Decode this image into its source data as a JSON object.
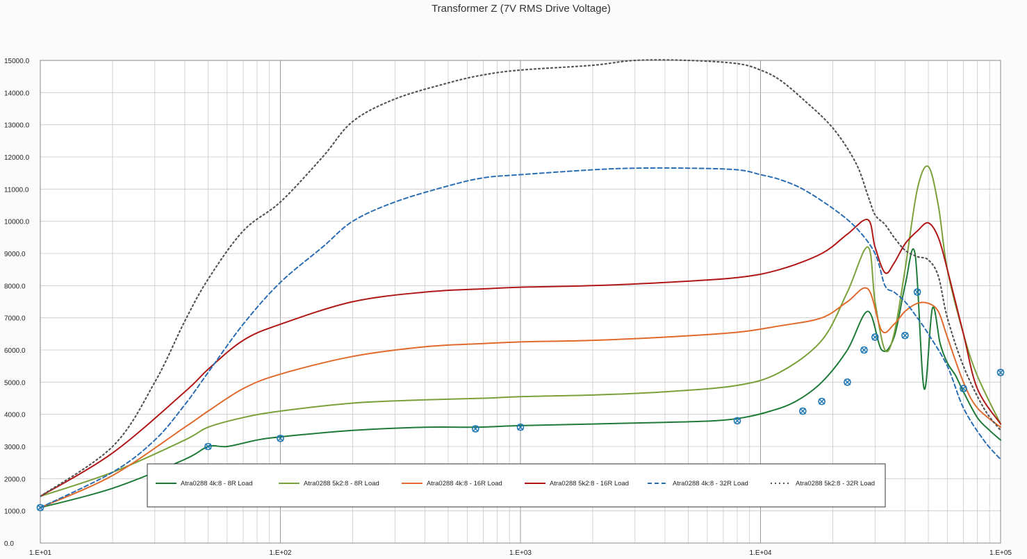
{
  "chart_data": {
    "type": "line",
    "title": "Transformer Z (7V RMS Drive Voltage)",
    "xlabel": "",
    "ylabel": "",
    "x_scale": "log",
    "xlim": [
      10,
      100000
    ],
    "ylim": [
      0,
      15000
    ],
    "grid": true,
    "legend_position": "bottom-center",
    "x_ticks": [
      "1.E+01",
      "1.E+02",
      "1.E+03",
      "1.E+04",
      "1.E+05"
    ],
    "y_ticks": [
      "0.0",
      "1000.0",
      "2000.0",
      "3000.0",
      "4000.0",
      "5000.0",
      "6000.0",
      "7000.0",
      "8000.0",
      "9000.0",
      "10000.0",
      "11000.0",
      "12000.0",
      "13000.0",
      "14000.0",
      "15000.0"
    ],
    "series": [
      {
        "name": "Atra0288 4k:8 - 8R Load",
        "color": "#1e7a37",
        "dash": "solid",
        "markers": true,
        "x": [
          10,
          20,
          40,
          50,
          60,
          80,
          100,
          200,
          400,
          650,
          1000,
          2000,
          4000,
          6500,
          8500,
          11000,
          14000,
          18000,
          23000,
          28000,
          32000,
          36000,
          40000,
          44000,
          48000,
          52000,
          56000,
          60000,
          65000,
          70000,
          80000,
          90000,
          100000
        ],
        "y": [
          1100,
          1700,
          2600,
          3000,
          3000,
          3200,
          3300,
          3500,
          3600,
          3600,
          3650,
          3700,
          3750,
          3800,
          3900,
          4100,
          4400,
          5000,
          6000,
          7200,
          6000,
          6400,
          8000,
          9000,
          4800,
          7300,
          6200,
          5600,
          5200,
          4700,
          3900,
          3500,
          3200
        ],
        "marker_x": [
          10,
          50,
          100,
          650,
          1000,
          8000,
          15000,
          18000,
          23000,
          27000,
          30000,
          40000,
          45000,
          70000,
          100000
        ],
        "marker_y": [
          1100,
          3000,
          3250,
          3550,
          3600,
          3800,
          4100,
          4400,
          5000,
          6000,
          6400,
          6450,
          7800,
          4800,
          5300
        ]
      },
      {
        "name": "Atra0288 5k2:8 - 8R Load",
        "color": "#7aa03a",
        "dash": "solid",
        "markers": false,
        "x": [
          10,
          20,
          40,
          50,
          70,
          100,
          200,
          400,
          700,
          1000,
          2000,
          4000,
          8000,
          12000,
          18000,
          23000,
          28000,
          30000,
          33000,
          36000,
          40000,
          45000,
          50000,
          55000,
          60000,
          70000,
          80000,
          100000
        ],
        "y": [
          1450,
          2200,
          3200,
          3600,
          3900,
          4100,
          4350,
          4450,
          4500,
          4550,
          4600,
          4700,
          4900,
          5300,
          6300,
          7800,
          9200,
          7500,
          6000,
          6500,
          8500,
          11000,
          11700,
          10500,
          8500,
          6500,
          5200,
          3700
        ]
      },
      {
        "name": "Atra0288 4k:8 - 16R Load",
        "color": "#e06a2b",
        "dash": "solid",
        "markers": false,
        "x": [
          10,
          20,
          40,
          50,
          70,
          100,
          200,
          400,
          700,
          1000,
          2000,
          4000,
          8000,
          12000,
          18000,
          23000,
          28000,
          32000,
          36000,
          40000,
          45000,
          50000,
          55000,
          60000,
          70000,
          80000,
          100000
        ],
        "y": [
          1100,
          2100,
          3600,
          4100,
          4800,
          5250,
          5800,
          6100,
          6200,
          6250,
          6300,
          6400,
          6550,
          6750,
          7000,
          7500,
          7900,
          6600,
          6800,
          7200,
          7450,
          7450,
          7200,
          6400,
          5000,
          4200,
          3600
        ]
      },
      {
        "name": "Atra0288 5k2:8 - 16R Load",
        "color": "#b01818",
        "dash": "solid",
        "markers": false,
        "x": [
          10,
          20,
          40,
          50,
          70,
          100,
          200,
          400,
          700,
          1000,
          2000,
          4000,
          8000,
          12000,
          18000,
          23000,
          28000,
          30000,
          33000,
          36000,
          40000,
          45000,
          50000,
          55000,
          60000,
          70000,
          80000,
          100000
        ],
        "y": [
          1450,
          2800,
          4700,
          5400,
          6300,
          6800,
          7500,
          7800,
          7900,
          7950,
          8000,
          8100,
          8250,
          8500,
          9000,
          9600,
          10050,
          9200,
          8400,
          8700,
          9300,
          9700,
          9950,
          9500,
          8500,
          6500,
          4800,
          3700
        ]
      },
      {
        "name": "Atra0288 4k:8 - 32R Load",
        "color": "#2a6db3",
        "dash": "dashed",
        "markers": false,
        "x": [
          10,
          20,
          30,
          40,
          50,
          70,
          100,
          150,
          200,
          300,
          500,
          700,
          1000,
          2000,
          3000,
          5000,
          8000,
          10000,
          12000,
          15000,
          20000,
          25000,
          30000,
          33000,
          36000,
          40000,
          45000,
          50000,
          60000,
          70000,
          85000,
          100000
        ],
        "y": [
          1100,
          2200,
          3200,
          4300,
          5300,
          6800,
          8100,
          9200,
          10000,
          10600,
          11100,
          11350,
          11450,
          11600,
          11650,
          11650,
          11600,
          11450,
          11300,
          11000,
          10400,
          9800,
          9000,
          8000,
          7800,
          7500,
          7000,
          6500,
          5500,
          4200,
          3200,
          2600
        ]
      },
      {
        "name": "Atra0288 5k2:8 - 32R Load",
        "color": "#555555",
        "dash": "dotted",
        "markers": false,
        "x": [
          10,
          20,
          30,
          40,
          50,
          70,
          100,
          150,
          200,
          300,
          500,
          700,
          1000,
          2000,
          3000,
          5000,
          8000,
          10000,
          12000,
          15000,
          20000,
          25000,
          28000,
          30000,
          33000,
          36000,
          40000,
          45000,
          50000,
          55000,
          60000,
          70000,
          85000,
          100000
        ],
        "y": [
          1450,
          3000,
          5000,
          6900,
          8200,
          9700,
          10600,
          12000,
          13100,
          13800,
          14300,
          14550,
          14700,
          14850,
          15000,
          15000,
          14900,
          14700,
          14400,
          13800,
          12900,
          11800,
          10800,
          10200,
          9900,
          9500,
          9100,
          8900,
          8800,
          8300,
          7000,
          5500,
          4200,
          3500
        ]
      }
    ]
  }
}
